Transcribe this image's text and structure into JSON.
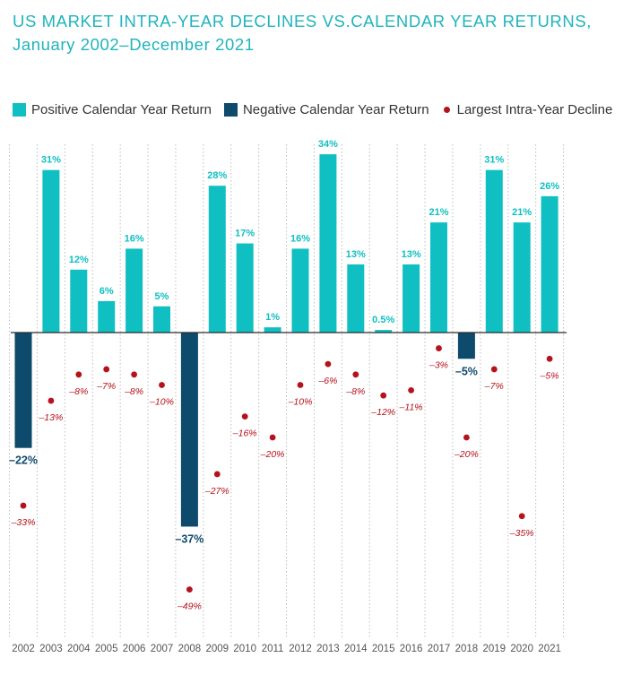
{
  "title_line1": "US MARKET INTRA-YEAR DECLINES VS.CALENDAR YEAR RETURNS,",
  "title_line2": "January 2002–December 2021",
  "legend": {
    "positive": "Positive Calendar Year Return",
    "negative": "Negative Calendar Year Return",
    "decline": "Largest Intra-Year Decline"
  },
  "colors": {
    "positive": "#0fbfc2",
    "negative": "#0d4a6b",
    "decline": "#b5121b",
    "title": "#1fb4bd",
    "gridline": "#bdbdbd",
    "axis": "#2b2b2b"
  },
  "chart_data": {
    "type": "bar",
    "title": "US MARKET INTRA-YEAR DECLINES VS.CALENDAR YEAR RETURNS, January 2002–December 2021",
    "categories": [
      "2002",
      "2003",
      "2004",
      "2005",
      "2006",
      "2007",
      "2008",
      "2009",
      "2010",
      "2011",
      "2012",
      "2013",
      "2014",
      "2015",
      "2016",
      "2017",
      "2018",
      "2019",
      "2020",
      "2021"
    ],
    "series": [
      {
        "name": "Calendar Year Return",
        "values": [
          -22,
          31,
          12,
          6,
          16,
          5,
          -37,
          28,
          17,
          1,
          16,
          34,
          13,
          0.5,
          13,
          21,
          -5,
          31,
          21,
          26
        ],
        "labels": [
          "–22%",
          "31%",
          "12%",
          "6%",
          "16%",
          "5%",
          "–37%",
          "28%",
          "17%",
          "1%",
          "16%",
          "34%",
          "13%",
          "0.5%",
          "13%",
          "21%",
          "–5%",
          "31%",
          "21%",
          "26%"
        ]
      },
      {
        "name": "Largest Intra-Year Decline",
        "values": [
          -33,
          -13,
          -8,
          -7,
          -8,
          -10,
          -49,
          -27,
          -16,
          -20,
          -10,
          -6,
          -8,
          -12,
          -11,
          -3,
          -20,
          -7,
          -35,
          -5
        ],
        "labels": [
          "–33%",
          "–13%",
          "–8%",
          "–7%",
          "–8%",
          "–10%",
          "–49%",
          "–27%",
          "–16%",
          "–20%",
          "–10%",
          "–6%",
          "–8%",
          "–12%",
          "–11%",
          "–3%",
          "–20%",
          "–7%",
          "–35%",
          "–5%"
        ]
      }
    ],
    "ylim": [
      -55,
      35
    ],
    "grid": "vertical dotted separators",
    "legend_position": "top"
  }
}
